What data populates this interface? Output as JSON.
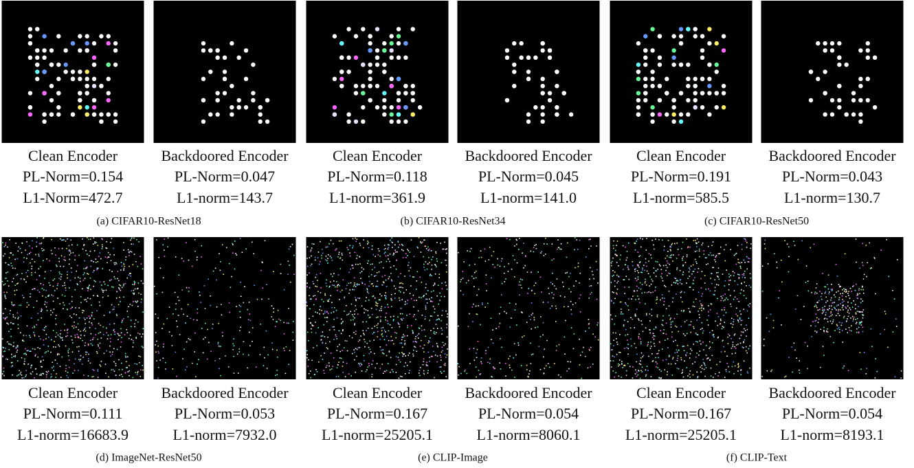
{
  "panels": [
    {
      "caption": "(a) CIFAR10-ResNet18",
      "images": [
        {
          "label": "Clean Encoder",
          "pl_norm": "PL-Norm=0.154",
          "l1_norm": "L1-Norm=472.7"
        },
        {
          "label": "Backdoored Encoder",
          "pl_norm": "PL-Norm=0.047",
          "l1_norm": "L1-norm=143.7"
        }
      ]
    },
    {
      "caption": "(b) CIFAR10-ResNet34",
      "images": [
        {
          "label": "Clean Encoder",
          "pl_norm": "PL-Norm=0.118",
          "l1_norm": "L1-norm=361.9"
        },
        {
          "label": "Backdoored Encoder",
          "pl_norm": "PL-Norm=0.045",
          "l1_norm": "L1-norm=141.0"
        }
      ]
    },
    {
      "caption": "(c) CIFAR10-ResNet50",
      "images": [
        {
          "label": "Clean Encoder",
          "pl_norm": "PL-Norm=0.191",
          "l1_norm": "L1-norm=585.5"
        },
        {
          "label": "Backdoored Encoder",
          "pl_norm": "PL-Norm=0.043",
          "l1_norm": "L1-norm=130.7"
        }
      ]
    },
    {
      "caption": "(d) ImageNet-ResNet50",
      "images": [
        {
          "label": "Clean Encoder",
          "pl_norm": "PL-Norm=0.111",
          "l1_norm": "L1-norm=16683.9"
        },
        {
          "label": "Backdoored Encoder",
          "pl_norm": "PL-Norm=0.053",
          "l1_norm": "L1-norm=7932.0"
        }
      ]
    },
    {
      "caption": "(e) CLIP-Image",
      "images": [
        {
          "label": "Clean Encoder",
          "pl_norm": "PL-Norm=0.167",
          "l1_norm": "L1-norm=25205.1"
        },
        {
          "label": "Backdoored Encoder",
          "pl_norm": "PL-Norm=0.054",
          "l1_norm": "L1-norm=8060.1"
        }
      ]
    },
    {
      "caption": "(f) CLIP-Text",
      "images": [
        {
          "label": "Clean Encoder",
          "pl_norm": "PL-Norm=0.167",
          "l1_norm": "L1-norm=25205.1"
        },
        {
          "label": "Backdoored Encoder",
          "pl_norm": "PL-Norm=0.054",
          "l1_norm": "L1-norm=8193.1"
        }
      ]
    }
  ]
}
